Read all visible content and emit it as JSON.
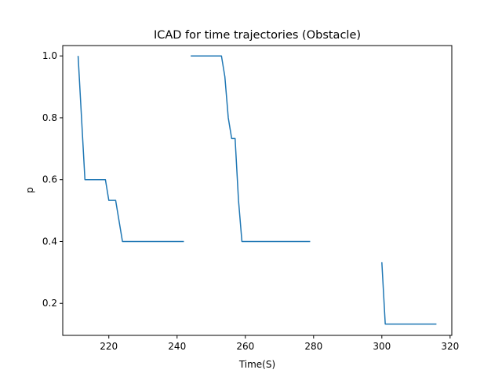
{
  "chart_data": {
    "type": "line",
    "title": "ICAD for time trajectories (Obstacle)",
    "xlabel": "Time(S)",
    "ylabel": "p",
    "xlim": [
      206.5,
      320.5
    ],
    "ylim": [
      0.0965,
      1.0335
    ],
    "xticks": [
      220,
      240,
      260,
      280,
      300,
      320
    ],
    "yticks": [
      0.2,
      0.4,
      0.6,
      0.8,
      1.0
    ],
    "xtick_labels": [
      "220",
      "240",
      "260",
      "280",
      "300",
      "320"
    ],
    "ytick_labels": [
      "0.2",
      "0.4",
      "0.6",
      "0.8",
      "1.0"
    ],
    "grid": false,
    "color": "#1f77b4",
    "series": [
      {
        "points": [
          [
            211,
            1.0
          ],
          [
            213,
            0.6
          ],
          [
            219,
            0.6
          ],
          [
            220,
            0.533
          ],
          [
            222,
            0.533
          ],
          [
            224,
            0.4
          ],
          [
            242,
            0.4
          ]
        ]
      },
      {
        "points": [
          [
            244,
            1.0
          ],
          [
            253,
            1.0
          ],
          [
            254,
            0.933
          ],
          [
            255,
            0.8
          ],
          [
            256,
            0.733
          ],
          [
            257,
            0.733
          ],
          [
            258,
            0.533
          ],
          [
            259,
            0.4
          ],
          [
            279,
            0.4
          ]
        ]
      },
      {
        "points": [
          [
            300,
            0.333
          ],
          [
            301,
            0.133
          ],
          [
            316,
            0.133
          ]
        ]
      }
    ]
  }
}
